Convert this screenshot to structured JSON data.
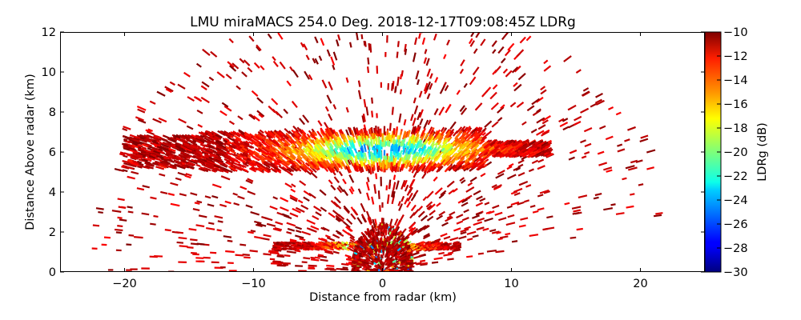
{
  "chart_data": {
    "type": "heatmap",
    "title": "LMU miraMACS 254.0 Deg. 2018-12-17T09:08:45Z  LDRg",
    "xlabel": "Distance from radar (km)",
    "ylabel": "Distance Above radar  (km)",
    "xlim": [
      -25,
      25
    ],
    "ylim": [
      0,
      12
    ],
    "xticks": [
      -20,
      -10,
      0,
      10,
      20
    ],
    "xtick_labels": [
      "−20",
      "−10",
      "0",
      "10",
      "20"
    ],
    "yticks": [
      0,
      2,
      4,
      6,
      8,
      10,
      12
    ],
    "ytick_labels": [
      "0",
      "2",
      "4",
      "6",
      "8",
      "10",
      "12"
    ],
    "colorbar": {
      "label": "LDRg (dB)",
      "range": [
        -30,
        -10
      ],
      "colormap": "jet",
      "ticks": [
        -10,
        -12,
        -14,
        -16,
        -18,
        -20,
        -22,
        -24,
        -26,
        -28,
        -30
      ],
      "tick_labels": [
        "−10",
        "−12",
        "−14",
        "−16",
        "−18",
        "−20",
        "−22",
        "−24",
        "−26",
        "−28",
        "−30"
      ]
    },
    "features": [
      {
        "name": "cloud-layer-upper",
        "x_range_km": [
          -20,
          13
        ],
        "altitude_km": [
          5,
          7.2
        ],
        "ldr_core_db": -22,
        "ldr_edge_db": -10
      },
      {
        "name": "cloud-layer-lower",
        "x_range_km": [
          -8.5,
          6
        ],
        "altitude_km": [
          1.1,
          1.5
        ],
        "ldr_core_db": -23,
        "ldr_edge_db": -10
      },
      {
        "name": "near-radar-clutter",
        "x_range_km": [
          -2.5,
          2.5
        ],
        "altitude_km": [
          0,
          2.5
        ],
        "ldr_core_db": -10,
        "ldr_edge_db": -12
      },
      {
        "name": "sparse-echoes",
        "x_range_km": [
          -22,
          21.5
        ],
        "altitude_km": [
          0,
          12
        ],
        "ldr_core_db": -10,
        "ldr_edge_db": -12
      }
    ],
    "grid": false
  }
}
